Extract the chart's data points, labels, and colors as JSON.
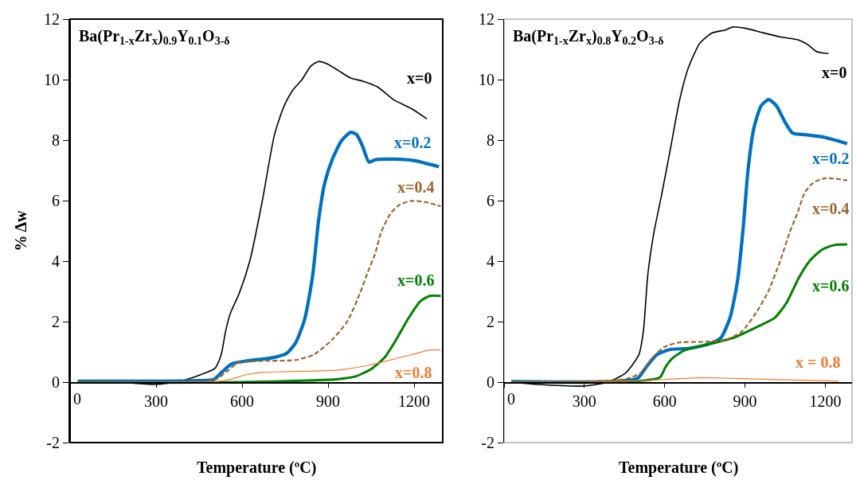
{
  "chart_data": [
    {
      "type": "line",
      "title": "Ba(Pr$_{1-x}$Zr$_{x}$)$_{0.9}$Y$_{0.1}$O$_{3-δ}$",
      "xlabel": "Temperature (ºC)",
      "ylabel": "% Δw",
      "xlim": [
        0,
        1300
      ],
      "xticks": [
        0,
        300,
        600,
        900,
        1200
      ],
      "ylim": [
        -2,
        12
      ],
      "yticks": [
        -2,
        0,
        2,
        4,
        6,
        8,
        10,
        12
      ],
      "grid": false,
      "series": [
        {
          "name": "x=0",
          "color": "#000000",
          "line_style": "solid",
          "x": [
            27,
            191,
            298,
            351,
            404,
            457,
            505,
            527,
            543,
            559,
            590,
            628,
            670,
            713,
            745,
            777,
            809,
            840,
            867,
            894,
            936,
            979,
            1021,
            1074,
            1128,
            1191,
            1239,
            1245
          ],
          "values": [
            0.02,
            -0.02,
            -0.08,
            -0.02,
            0.08,
            0.25,
            0.45,
            0.9,
            1.7,
            2.27,
            2.93,
            4.04,
            5.96,
            8.18,
            9.09,
            9.65,
            10.0,
            10.45,
            10.6,
            10.53,
            10.3,
            10.05,
            9.95,
            9.75,
            9.34,
            9.04,
            8.74,
            8.7
          ]
        },
        {
          "name": "x=0.2",
          "color": "#0070c0",
          "line_style": "solid",
          "x": [
            27,
            300,
            450,
            500,
            532,
            564,
            617,
            702,
            755,
            787,
            819,
            846,
            867,
            888,
            915,
            947,
            979,
            1000,
            1021,
            1043,
            1064,
            1128,
            1202,
            1287
          ],
          "values": [
            0.03,
            0.03,
            0.05,
            0.08,
            0.35,
            0.6,
            0.7,
            0.8,
            0.95,
            1.3,
            2.1,
            3.5,
            5.35,
            6.57,
            7.37,
            7.98,
            8.26,
            8.18,
            7.78,
            7.27,
            7.35,
            7.37,
            7.32,
            7.12
          ]
        },
        {
          "name": "x=0.4",
          "color": "#a0652f",
          "line_style": "dashed",
          "x": [
            27,
            300,
            470,
            511,
            553,
            585,
            670,
            787,
            851,
            915,
            968,
            1011,
            1043,
            1064,
            1085,
            1117,
            1149,
            1191,
            1245,
            1293
          ],
          "values": [
            0.0,
            0.0,
            0.02,
            0.1,
            0.4,
            0.63,
            0.7,
            0.73,
            0.91,
            1.41,
            2.02,
            2.93,
            3.74,
            4.24,
            4.95,
            5.56,
            5.86,
            5.99,
            5.94,
            5.81
          ]
        },
        {
          "name": "x=0.6",
          "color": "#008000",
          "line_style": "solid",
          "x": [
            27,
            298,
            600,
            830,
            936,
            1000,
            1053,
            1096,
            1138,
            1181,
            1223,
            1255,
            1293
          ],
          "values": [
            0.0,
            -0.02,
            0.0,
            0.05,
            0.1,
            0.2,
            0.45,
            0.8,
            1.41,
            2.12,
            2.68,
            2.85,
            2.85
          ]
        },
        {
          "name": "x=0.8",
          "color": "#ed7d31",
          "line_style": "solid",
          "x": [
            27,
            300,
            511,
            564,
            617,
            670,
            777,
            936,
            1043,
            1149,
            1202,
            1255,
            1293
          ],
          "values": [
            0.0,
            0.0,
            0.02,
            0.1,
            0.25,
            0.32,
            0.35,
            0.4,
            0.56,
            0.81,
            0.93,
            1.06,
            1.06
          ]
        }
      ]
    },
    {
      "type": "line",
      "title": "Ba(Pr$_{1-x}$Zr$_{x}$)$_{0.8}$Y$_{0.2}$O$_{3-δ}$",
      "xlabel": "Temperature (ºC)",
      "xlim": [
        0,
        1300
      ],
      "xticks": [
        0,
        300,
        600,
        900,
        1200
      ],
      "ylim": [
        -2,
        12
      ],
      "yticks": [
        -2,
        0,
        2,
        4,
        6,
        8,
        10,
        12
      ],
      "grid": false,
      "series": [
        {
          "name": "x=0",
          "color": "#000000",
          "line_style": "solid",
          "x": [
            27,
            130,
            298,
            387,
            454,
            504,
            521,
            537,
            560,
            588,
            621,
            655,
            689,
            732,
            777,
            827,
            855,
            900,
            967,
            1034,
            1100,
            1134,
            1167,
            1212
          ],
          "values": [
            0.0,
            -0.08,
            -0.13,
            0.0,
            0.3,
            0.91,
            1.72,
            3.54,
            4.95,
            6.16,
            7.68,
            9.29,
            10.4,
            11.21,
            11.54,
            11.64,
            11.74,
            11.7,
            11.55,
            11.41,
            11.31,
            11.16,
            10.93,
            10.86
          ]
        },
        {
          "name": "x=0.2",
          "color": "#0070c0",
          "line_style": "solid",
          "x": [
            27,
            409,
            498,
            532,
            571,
            621,
            688,
            766,
            810,
            844,
            872,
            894,
            911,
            933,
            961,
            989,
            1017,
            1050,
            1078,
            1123,
            1189,
            1245,
            1282
          ],
          "values": [
            0.02,
            0.02,
            0.12,
            0.51,
            0.91,
            1.08,
            1.11,
            1.26,
            1.46,
            2.12,
            3.33,
            5.15,
            6.97,
            8.38,
            9.14,
            9.34,
            9.14,
            8.59,
            8.23,
            8.18,
            8.11,
            7.98,
            7.88
          ]
        },
        {
          "name": "x=0.4",
          "color": "#a0652f",
          "line_style": "dashed",
          "x": [
            27,
            298,
            454,
            510,
            554,
            599,
            654,
            744,
            833,
            888,
            944,
            989,
            1033,
            1067,
            1095,
            1123,
            1156,
            1201,
            1282
          ],
          "values": [
            0.0,
            0.02,
            0.1,
            0.3,
            0.81,
            1.16,
            1.31,
            1.33,
            1.41,
            1.67,
            2.32,
            3.03,
            4.04,
            4.95,
            5.56,
            6.26,
            6.6,
            6.74,
            6.67
          ]
        },
        {
          "name": "x=0.6",
          "color": "#008000",
          "line_style": "solid",
          "x": [
            27,
            298,
            521,
            582,
            604,
            632,
            677,
            744,
            855,
            944,
            1011,
            1056,
            1100,
            1145,
            1190,
            1234,
            1282
          ],
          "values": [
            0.0,
            -0.02,
            0.05,
            0.15,
            0.51,
            0.81,
            1.06,
            1.21,
            1.46,
            1.82,
            2.12,
            2.63,
            3.43,
            4.04,
            4.39,
            4.53,
            4.55
          ]
        },
        {
          "name": "x = 0.8",
          "color": "#ed7d31",
          "line_style": "solid",
          "x": [
            27,
            300,
            521,
            632,
            744,
            855,
            1078,
            1250
          ],
          "values": [
            0.0,
            0.0,
            0.05,
            0.1,
            0.15,
            0.12,
            0.07,
            0.03
          ]
        }
      ]
    }
  ]
}
